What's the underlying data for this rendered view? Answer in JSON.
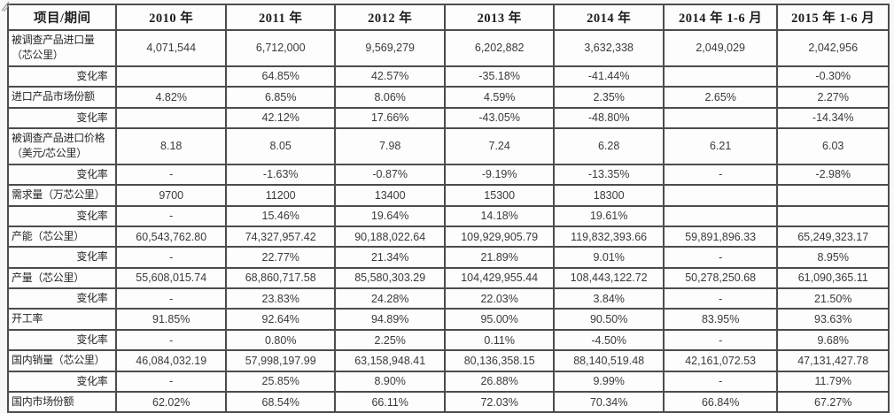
{
  "table": {
    "columns": [
      "项目/期间",
      "2010 年",
      "2011 年",
      "2012 年",
      "2013 年",
      "2014 年",
      "2014 年 1-6 月",
      "2015 年 1-6 月"
    ],
    "rows": [
      {
        "label": "被调查产品进口量（芯公里）",
        "type": "metric",
        "values": [
          "4,071,544",
          "6,712,000",
          "9,569,279",
          "6,202,882",
          "3,632,338",
          "2,049,029",
          "2,042,956"
        ]
      },
      {
        "label": "变化率",
        "type": "change",
        "values": [
          "",
          "64.85%",
          "42.57%",
          "-35.18%",
          "-41.44%",
          "",
          "-0.30%"
        ]
      },
      {
        "label": "进口产品市场份额",
        "type": "metric",
        "values": [
          "4.82%",
          "6.85%",
          "8.06%",
          "4.59%",
          "2.35%",
          "2.65%",
          "2.27%"
        ]
      },
      {
        "label": "变化率",
        "type": "change",
        "values": [
          "",
          "42.12%",
          "17.66%",
          "-43.05%",
          "-48.80%",
          "",
          "-14.34%"
        ]
      },
      {
        "label": "被调查产品进口价格（美元/芯公里）",
        "type": "metric",
        "values": [
          "8.18",
          "8.05",
          "7.98",
          "7.24",
          "6.28",
          "6.21",
          "6.03"
        ]
      },
      {
        "label": "变化率",
        "type": "change",
        "values": [
          "-",
          "-1.63%",
          "-0.87%",
          "-9.19%",
          "-13.35%",
          "-",
          "-2.98%"
        ]
      },
      {
        "label": "需求量（万芯公里）",
        "type": "metric",
        "values": [
          "9700",
          "11200",
          "13400",
          "15300",
          "18300",
          "",
          ""
        ]
      },
      {
        "label": "变化率",
        "type": "change",
        "values": [
          "-",
          "15.46%",
          "19.64%",
          "14.18%",
          "19.61%",
          "",
          ""
        ]
      },
      {
        "label": "产能（芯公里）",
        "type": "metric",
        "values": [
          "60,543,762.80",
          "74,327,957.42",
          "90,188,022.64",
          "109,929,905.79",
          "119,832,393.66",
          "59,891,896.33",
          "65,249,323.17"
        ]
      },
      {
        "label": "变化率",
        "type": "change",
        "values": [
          "-",
          "22.77%",
          "21.34%",
          "21.89%",
          "9.01%",
          "-",
          "8.95%"
        ]
      },
      {
        "label": "产量（芯公里）",
        "type": "metric",
        "values": [
          "55,608,015.74",
          "68,860,717.58",
          "85,580,303.29",
          "104,429,955.44",
          "108,443,122.72",
          "50,278,250.68",
          "61,090,365.11"
        ]
      },
      {
        "label": "变化率",
        "type": "change",
        "values": [
          "-",
          "23.83%",
          "24.28%",
          "22.03%",
          "3.84%",
          "-",
          "21.50%"
        ]
      },
      {
        "label": "开工率",
        "type": "metric",
        "values": [
          "91.85%",
          "92.64%",
          "94.89%",
          "95.00%",
          "90.50%",
          "83.95%",
          "93.63%"
        ]
      },
      {
        "label": "变化率",
        "type": "change",
        "values": [
          "-",
          "0.80%",
          "2.25%",
          "0.11%",
          "-4.50%",
          "-",
          "9.68%"
        ]
      },
      {
        "label": "国内销量（芯公里）",
        "type": "metric",
        "values": [
          "46,084,032.19",
          "57,998,197.99",
          "63,158,948.41",
          "80,136,358.15",
          "88,140,519.48",
          "42,161,072.53",
          "47,131,427.78"
        ]
      },
      {
        "label": "变化率",
        "type": "change",
        "values": [
          "-",
          "25.85%",
          "8.90%",
          "26.88%",
          "9.99%",
          "-",
          "11.79%"
        ]
      },
      {
        "label": "国内市场份额",
        "type": "metric",
        "values": [
          "62.02%",
          "68.54%",
          "66.11%",
          "72.03%",
          "70.34%",
          "66.84%",
          "67.27%"
        ]
      }
    ]
  }
}
